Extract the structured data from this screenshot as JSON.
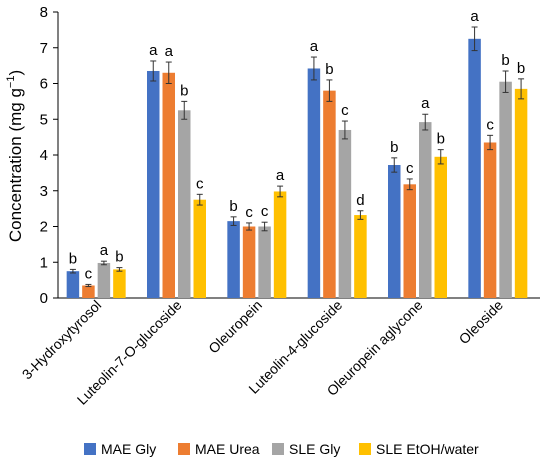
{
  "chart_data": {
    "type": "bar",
    "categories": [
      "3-Hydroxytyrosol",
      "Luteolin-7-O-glucoside",
      "Oleuropein",
      "Luteolin-4-glucoside",
      "Oleuropein aglycone",
      "Oleoside"
    ],
    "series": [
      {
        "name": "MAE Gly",
        "color": "#4472C4",
        "values": [
          0.75,
          6.35,
          2.15,
          6.42,
          3.72,
          7.25
        ],
        "errors": [
          0.05,
          0.28,
          0.12,
          0.32,
          0.2,
          0.33
        ],
        "letters": [
          "b",
          "a",
          "b",
          "a",
          "b",
          "a"
        ]
      },
      {
        "name": "MAE Urea",
        "color": "#ED7D31",
        "values": [
          0.35,
          6.3,
          2.0,
          5.8,
          3.18,
          4.35
        ],
        "errors": [
          0.03,
          0.3,
          0.1,
          0.3,
          0.15,
          0.2
        ],
        "letters": [
          "c",
          "a",
          "c",
          "b",
          "c",
          "c"
        ]
      },
      {
        "name": "SLE Gly",
        "color": "#A5A5A5",
        "values": [
          0.98,
          5.25,
          2.0,
          4.7,
          4.92,
          6.05
        ],
        "errors": [
          0.05,
          0.25,
          0.12,
          0.25,
          0.22,
          0.3
        ],
        "letters": [
          "a",
          "b",
          "c",
          "c",
          "a",
          "b"
        ]
      },
      {
        "name": "SLE EtOH/water",
        "color": "#FFC000",
        "values": [
          0.8,
          2.75,
          2.98,
          2.32,
          3.95,
          5.85
        ],
        "errors": [
          0.05,
          0.15,
          0.15,
          0.12,
          0.2,
          0.28
        ],
        "letters": [
          "b",
          "c",
          "a",
          "d",
          "b",
          "b"
        ]
      }
    ],
    "ylabel": "Concentration (mg g",
    "ylabel_sup": "−1",
    "ylabel_close": ")",
    "ylim": [
      0,
      8
    ],
    "yticks": [
      "0",
      "1",
      "2",
      "3",
      "4",
      "5",
      "6",
      "7",
      "8"
    ],
    "grid": false,
    "legend_position": "bottom"
  }
}
